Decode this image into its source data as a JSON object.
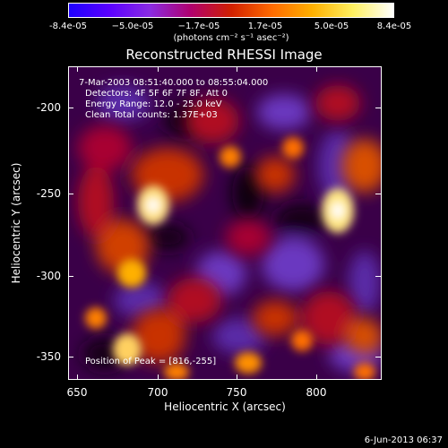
{
  "colorbar": {
    "tick_labels": [
      "-8.4e-05",
      "−5.0e-05",
      "−1.7e-05",
      "1.7e-05",
      "5.0e-05",
      "8.4e-05"
    ],
    "units": "(photons cm⁻² s⁻¹ asec⁻²)",
    "colors": [
      "#1e00ff",
      "#5a00ff",
      "#8a2be2",
      "#b0006e",
      "#d02000",
      "#ff6a00",
      "#ffb000",
      "#fff060",
      "#ffffff"
    ]
  },
  "title": "Reconstructed RHESSI Image",
  "annotations": {
    "time": "7-Mar-2003 08:51:40.000 to 08:55:04.000",
    "detectors": "Detectors: 4F 5F 6F 7F 8F, Att 0",
    "energy": "Energy Range: 12.0 - 25.0 keV",
    "clean": "Clean     Total counts: 1.37E+03",
    "peak": "Position of Peak = [816,-255]"
  },
  "axes": {
    "xlabel": "Heliocentric X (arcsec)",
    "ylabel": "Heliocentric Y (arcsec)",
    "xticks": [
      "650",
      "700",
      "750",
      "800"
    ],
    "yticks": [
      "-200",
      "-250",
      "-300",
      "-350"
    ]
  },
  "footer_date": "6-Jun-2013 06:37"
}
